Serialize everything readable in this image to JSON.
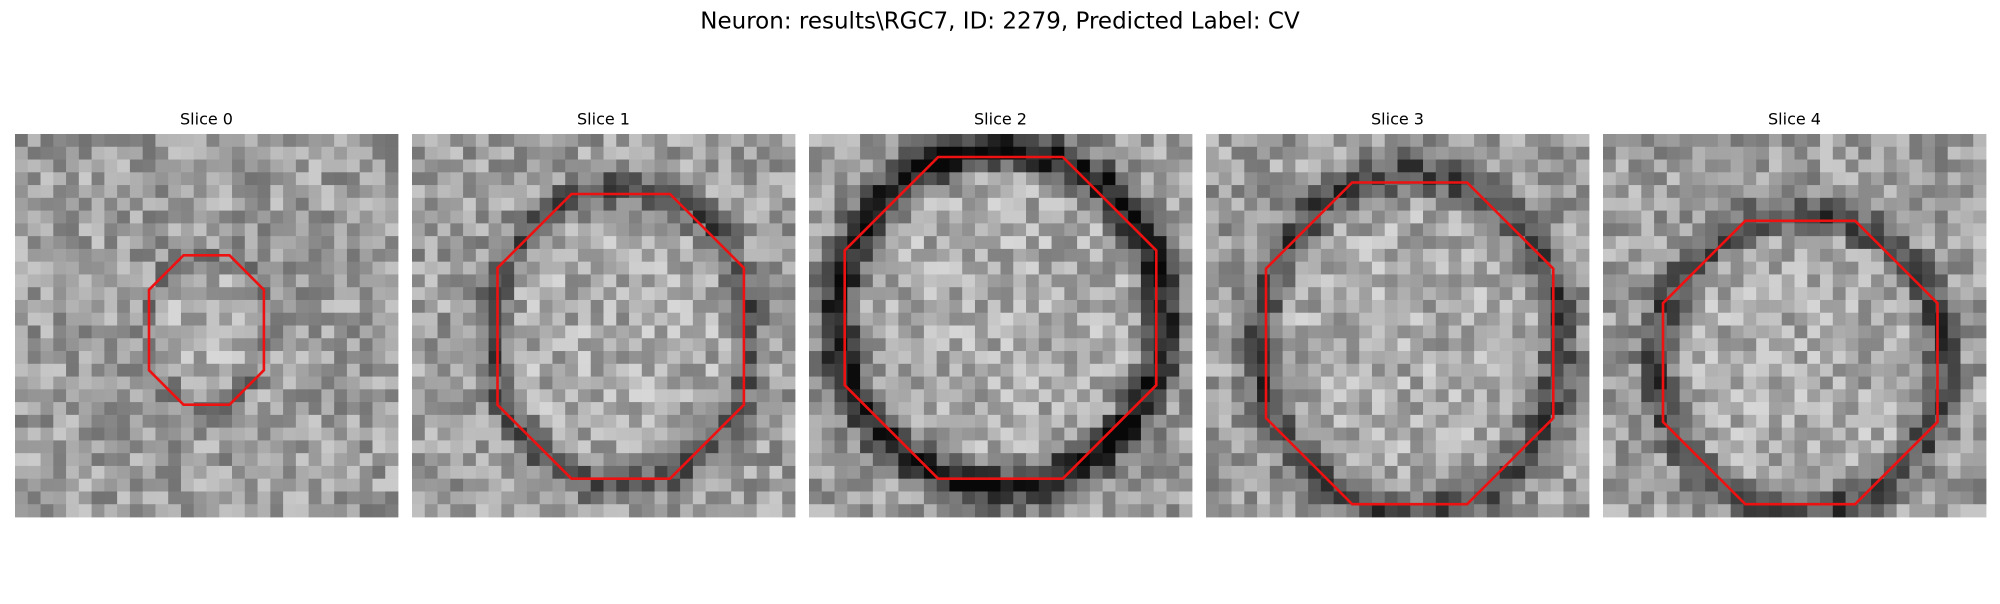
{
  "title": "Neuron: results\\RGC7, ID: 2279, Predicted Label: CV",
  "panels": [
    {
      "label": "Slice 0"
    },
    {
      "label": "Slice 1"
    },
    {
      "label": "Slice 2"
    },
    {
      "label": "Slice 3"
    },
    {
      "label": "Slice 4"
    }
  ]
}
